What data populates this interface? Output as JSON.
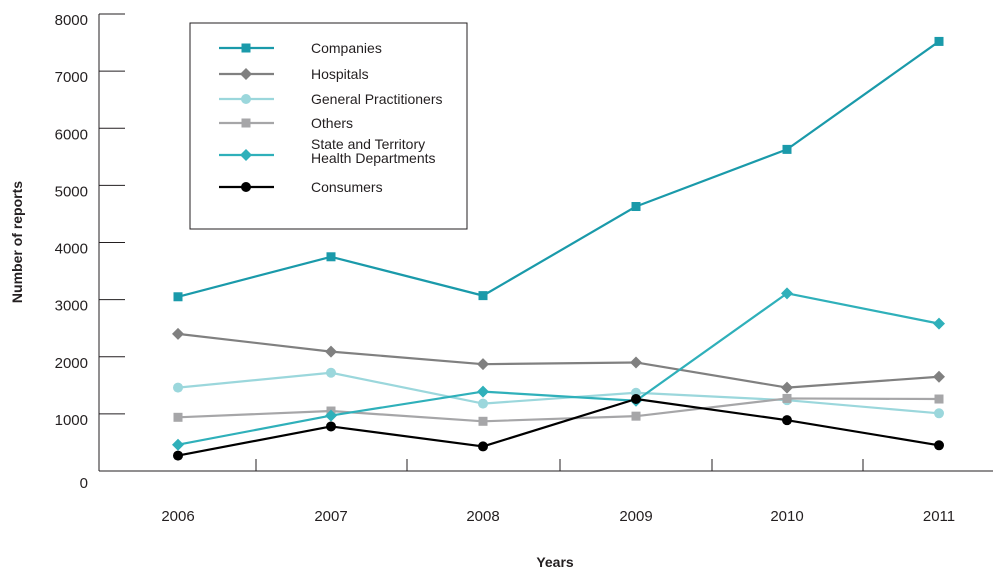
{
  "chart_data": {
    "type": "line",
    "xlabel": "Years",
    "ylabel": "Number of reports",
    "categories": [
      "2006",
      "2007",
      "2008",
      "2009",
      "2010",
      "2011"
    ],
    "ylim": [
      0,
      8000
    ],
    "yticks": [
      "0",
      "1000",
      "2000",
      "3000",
      "4000",
      "5000",
      "6000",
      "7000",
      "8000"
    ],
    "grid": false,
    "legend_position": "top-left",
    "series": [
      {
        "name": "Companies",
        "color": "#1a9aaa",
        "marker": "square",
        "values": [
          3050,
          3750,
          3070,
          4630,
          5630,
          7520
        ]
      },
      {
        "name": "Hospitals",
        "color": "#808080",
        "marker": "diamond",
        "values": [
          2400,
          2090,
          1870,
          1900,
          1460,
          1650
        ]
      },
      {
        "name": "General Practitioners",
        "color": "#9bd7dc",
        "marker": "circle",
        "values": [
          1460,
          1720,
          1180,
          1370,
          1240,
          1010
        ]
      },
      {
        "name": "Others",
        "color": "#a6a6a8",
        "marker": "square",
        "values": [
          940,
          1050,
          870,
          960,
          1270,
          1260
        ]
      },
      {
        "name": "State and Territory Health Departments",
        "label_lines": [
          "State and Territory",
          "Health Departments"
        ],
        "color": "#2fb0ba",
        "marker": "diamond",
        "values": [
          460,
          970,
          1390,
          1230,
          3110,
          2580
        ]
      },
      {
        "name": "Consumers",
        "color": "#000000",
        "marker": "circle",
        "values": [
          270,
          780,
          430,
          1260,
          890,
          450
        ]
      }
    ]
  }
}
